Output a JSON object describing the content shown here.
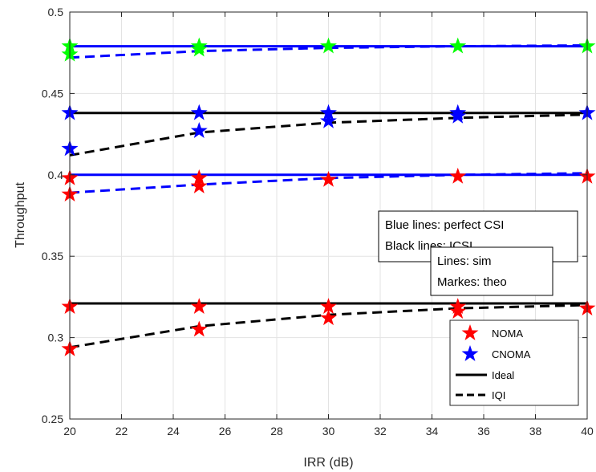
{
  "chart_data": {
    "type": "line",
    "xlabel": "IRR (dB)",
    "ylabel": "Throughput",
    "xlim": [
      20,
      40
    ],
    "ylim": [
      0.25,
      0.5
    ],
    "xticks": [
      20,
      22,
      24,
      26,
      28,
      30,
      32,
      34,
      36,
      38,
      40
    ],
    "yticks": [
      0.25,
      0.3,
      0.35,
      0.4,
      0.45,
      0.5
    ],
    "ytick_labels": [
      "0.25",
      "0.3",
      "0.35",
      "0.4",
      "0.45",
      "0.5"
    ],
    "grid": true,
    "colors": {
      "blue": "#0000ff",
      "black": "#000000",
      "red": "#ff0000",
      "green": "#00ff00"
    },
    "lines": [
      {
        "color": "blue",
        "style": "solid",
        "x": [
          20,
          40
        ],
        "y": [
          0.479,
          0.479
        ]
      },
      {
        "color": "blue",
        "style": "dashed",
        "x": [
          20,
          25,
          30,
          35,
          40
        ],
        "y": [
          0.472,
          0.476,
          0.478,
          0.479,
          0.4795
        ]
      },
      {
        "color": "black",
        "style": "solid",
        "x": [
          20,
          40
        ],
        "y": [
          0.438,
          0.438
        ]
      },
      {
        "color": "black",
        "style": "dashed",
        "x": [
          20,
          25,
          30,
          35,
          40
        ],
        "y": [
          0.412,
          0.426,
          0.432,
          0.435,
          0.437
        ]
      },
      {
        "color": "blue",
        "style": "solid",
        "x": [
          20,
          40
        ],
        "y": [
          0.4,
          0.4
        ]
      },
      {
        "color": "blue",
        "style": "dashed",
        "x": [
          20,
          25,
          30,
          35,
          40
        ],
        "y": [
          0.389,
          0.394,
          0.398,
          0.4,
          0.401
        ]
      },
      {
        "color": "black",
        "style": "solid",
        "x": [
          20,
          40
        ],
        "y": [
          0.321,
          0.321
        ]
      },
      {
        "color": "black",
        "style": "dashed",
        "x": [
          20,
          25,
          30,
          35,
          40
        ],
        "y": [
          0.294,
          0.307,
          0.314,
          0.318,
          0.32
        ]
      }
    ],
    "markers": [
      {
        "color": "green",
        "x": [
          20,
          20,
          25,
          25,
          30,
          35,
          40
        ],
        "y": [
          0.479,
          0.474,
          0.479,
          0.477,
          0.479,
          0.479,
          0.479
        ]
      },
      {
        "color": "blue",
        "x": [
          20,
          20,
          25,
          25,
          30,
          30,
          35,
          35,
          40
        ],
        "y": [
          0.438,
          0.416,
          0.438,
          0.427,
          0.438,
          0.433,
          0.438,
          0.436,
          0.438
        ]
      },
      {
        "color": "red",
        "x": [
          20,
          20,
          25,
          25,
          30,
          35,
          40
        ],
        "y": [
          0.398,
          0.388,
          0.398,
          0.393,
          0.397,
          0.399,
          0.399
        ]
      },
      {
        "color": "red",
        "x": [
          20,
          20,
          25,
          25,
          30,
          30,
          35,
          35,
          40
        ],
        "y": [
          0.319,
          0.293,
          0.319,
          0.305,
          0.319,
          0.312,
          0.319,
          0.316,
          0.318
        ]
      }
    ],
    "annotations": [
      {
        "lines": [
          "Blue lines: perfect CSI",
          "Black lines: ICSI"
        ]
      },
      {
        "lines": [
          "Lines: sim",
          "Markes: theo"
        ]
      }
    ],
    "legend": {
      "placement": "lower-right",
      "entries": [
        {
          "label": "NOMA",
          "kind": "marker",
          "color": "red"
        },
        {
          "label": "CNOMA",
          "kind": "marker",
          "color": "blue"
        },
        {
          "label": "Ideal",
          "kind": "solid",
          "color": "black"
        },
        {
          "label": "IQI",
          "kind": "dashed",
          "color": "black"
        }
      ]
    }
  }
}
